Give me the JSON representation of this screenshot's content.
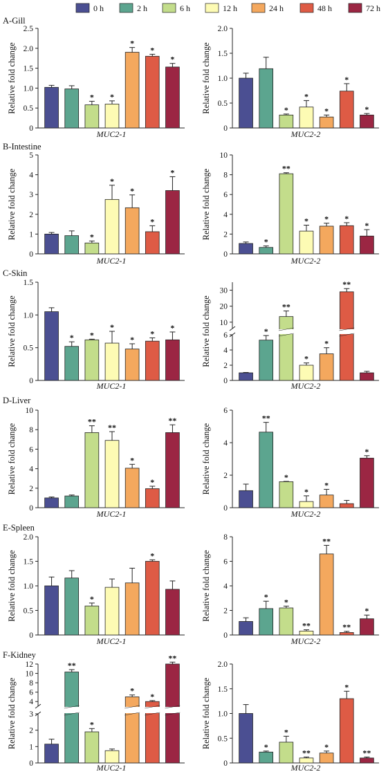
{
  "legend": {
    "entries": [
      {
        "label": "0 h",
        "color": "#4b4f92"
      },
      {
        "label": "2 h",
        "color": "#5ca58f"
      },
      {
        "label": "6 h",
        "color": "#c3dd8b"
      },
      {
        "label": "12 h",
        "color": "#fdfbb4"
      },
      {
        "label": "24 h",
        "color": "#f4a85e"
      },
      {
        "label": "48 h",
        "color": "#de5b45"
      },
      {
        "label": "72 h",
        "color": "#9b2643"
      }
    ]
  },
  "chart_data": [
    {
      "type": "bar",
      "panel": "A-Gill",
      "gene": "MUC2-1",
      "ylabel": "Relative fold change",
      "categories": [
        "0 h",
        "2 h",
        "6 h",
        "12 h",
        "24 h",
        "48 h",
        "72 h"
      ],
      "values": [
        1.02,
        0.98,
        0.58,
        0.6,
        1.9,
        1.8,
        1.53
      ],
      "errors": [
        0.05,
        0.08,
        0.09,
        0.08,
        0.12,
        0.05,
        0.09
      ],
      "significance": [
        "",
        "",
        "*",
        "*",
        "*",
        "*",
        "*"
      ],
      "ylim": [
        0,
        2.5
      ],
      "yticks": [
        0,
        0.5,
        1.0,
        1.5,
        2.0,
        2.5
      ],
      "yticklabels": [
        "0",
        "0.5",
        "1.0",
        "1.5",
        "2.0",
        "2.5"
      ]
    },
    {
      "type": "bar",
      "panel": "",
      "gene": "MUC2-2",
      "ylabel": "Relative fold change",
      "categories": [
        "0 h",
        "2 h",
        "6 h",
        "12 h",
        "24 h",
        "48 h",
        "72 h"
      ],
      "values": [
        1.0,
        1.19,
        0.26,
        0.42,
        0.22,
        0.74,
        0.26
      ],
      "errors": [
        0.1,
        0.23,
        0.02,
        0.13,
        0.04,
        0.15,
        0.03
      ],
      "significance": [
        "",
        "",
        "*",
        "*",
        "*",
        "*",
        "*"
      ],
      "ylim": [
        0,
        2.0
      ],
      "yticks": [
        0,
        0.5,
        1.0,
        1.5,
        2.0
      ],
      "yticklabels": [
        "0",
        "0.5",
        "1.0",
        "1.5",
        "2.0"
      ]
    },
    {
      "type": "bar",
      "panel": "B-Intestine",
      "gene": "MUC2-1",
      "ylabel": "Relative fold change",
      "categories": [
        "0 h",
        "2 h",
        "6 h",
        "12 h",
        "24 h",
        "48 h",
        "72 h"
      ],
      "values": [
        1.0,
        0.92,
        0.55,
        2.75,
        2.33,
        1.12,
        3.2
      ],
      "errors": [
        0.08,
        0.24,
        0.1,
        0.72,
        0.65,
        0.3,
        0.7
      ],
      "significance": [
        "",
        "",
        "*",
        "*",
        "*",
        "*",
        "*"
      ],
      "ylim": [
        0,
        5
      ],
      "yticks": [
        0,
        1,
        2,
        3,
        4,
        5
      ],
      "yticklabels": [
        "0",
        "1",
        "2",
        "3",
        "4",
        "5"
      ]
    },
    {
      "type": "bar",
      "panel": "",
      "gene": "MUC2-2",
      "ylabel": "Relative fold change",
      "categories": [
        "0 h",
        "2 h",
        "6 h",
        "12 h",
        "24 h",
        "48 h",
        "72 h"
      ],
      "values": [
        1.05,
        0.65,
        8.1,
        2.3,
        2.8,
        2.85,
        1.8
      ],
      "errors": [
        0.15,
        0.15,
        0.1,
        0.6,
        0.3,
        0.3,
        0.65
      ],
      "significance": [
        "",
        "*",
        "**",
        "*",
        "*",
        "*",
        "*"
      ],
      "ylim": [
        0,
        10
      ],
      "yticks": [
        0,
        2,
        4,
        6,
        8,
        10
      ],
      "yticklabels": [
        "0",
        "2",
        "4",
        "6",
        "8",
        "10"
      ]
    },
    {
      "type": "bar",
      "panel": "C-Skin",
      "gene": "MUC2-1",
      "ylabel": "Relative fold change",
      "categories": [
        "0 h",
        "2 h",
        "6 h",
        "12 h",
        "24 h",
        "48 h",
        "72 h"
      ],
      "values": [
        1.05,
        0.52,
        0.62,
        0.57,
        0.48,
        0.6,
        0.62
      ],
      "errors": [
        0.06,
        0.07,
        0.01,
        0.18,
        0.08,
        0.05,
        0.12
      ],
      "significance": [
        "",
        "*",
        "*",
        "*",
        "*",
        "*",
        "*"
      ],
      "ylim": [
        0,
        1.5
      ],
      "yticks": [
        0,
        0.5,
        1.0,
        1.5
      ],
      "yticklabels": [
        "0",
        "0.5",
        "1.0",
        "1.5"
      ]
    },
    {
      "type": "bar",
      "panel": "",
      "gene": "MUC2-2",
      "ylabel": "Relative fold change",
      "categories": [
        "0 h",
        "2 h",
        "6 h",
        "12 h",
        "24 h",
        "48 h",
        "72 h"
      ],
      "values": [
        1.0,
        5.3,
        13.5,
        2.0,
        3.5,
        29.0,
        1.0
      ],
      "errors": [
        0.05,
        0.6,
        3.5,
        0.3,
        0.8,
        2.0,
        0.2
      ],
      "significance": [
        "",
        "*",
        "**",
        "*",
        "*",
        "**",
        ""
      ],
      "axis_break": {
        "lower": [
          0,
          6
        ],
        "upper": [
          6,
          35
        ]
      },
      "yticks_lower": [
        0,
        2,
        4,
        6
      ],
      "yticks_upper": [
        10,
        20,
        30
      ],
      "yticklabels_lower": [
        "0",
        "2",
        "4",
        "6"
      ],
      "yticklabels_upper": [
        "10",
        "20",
        "30"
      ]
    },
    {
      "type": "bar",
      "panel": "D-Liver",
      "gene": "MUC2-1",
      "ylabel": "Relative fold change",
      "categories": [
        "0 h",
        "2 h",
        "6 h",
        "12 h",
        "24 h",
        "48 h",
        "72 h"
      ],
      "values": [
        1.0,
        1.2,
        7.7,
        6.9,
        4.05,
        1.95,
        7.7
      ],
      "errors": [
        0.1,
        0.1,
        0.7,
        0.9,
        0.4,
        0.25,
        0.8
      ],
      "significance": [
        "",
        "",
        "**",
        "**",
        "*",
        "*",
        "**"
      ],
      "ylim": [
        0,
        10
      ],
      "yticks": [
        0,
        2,
        4,
        6,
        8,
        10
      ],
      "yticklabels": [
        "0",
        "2",
        "4",
        "6",
        "8",
        "10"
      ]
    },
    {
      "type": "bar",
      "panel": "",
      "gene": "MUC2-2",
      "ylabel": "Relative fold change",
      "categories": [
        "0 h",
        "2 h",
        "6 h",
        "12 h",
        "24 h",
        "48 h",
        "72 h"
      ],
      "values": [
        1.05,
        4.65,
        1.6,
        0.38,
        0.78,
        0.25,
        3.05
      ],
      "errors": [
        0.4,
        0.6,
        0.02,
        0.35,
        0.35,
        0.2,
        0.15
      ],
      "significance": [
        "",
        "**",
        "*",
        "*",
        "*",
        "",
        "*"
      ],
      "ylim": [
        0,
        6
      ],
      "yticks": [
        0,
        2,
        4,
        6
      ],
      "yticklabels": [
        "0",
        "2",
        "4",
        "6"
      ]
    },
    {
      "type": "bar",
      "panel": "E-Spleen",
      "gene": "MUC2-1",
      "ylabel": "Relative fold change",
      "categories": [
        "0 h",
        "2 h",
        "6 h",
        "12 h",
        "24 h",
        "48 h",
        "72 h"
      ],
      "values": [
        1.0,
        1.16,
        0.59,
        0.97,
        1.06,
        1.5,
        0.93
      ],
      "errors": [
        0.18,
        0.15,
        0.06,
        0.17,
        0.3,
        0.03,
        0.17
      ],
      "significance": [
        "",
        "",
        "*",
        "",
        "",
        "*",
        ""
      ],
      "ylim": [
        0,
        2.0
      ],
      "yticks": [
        0,
        0.5,
        1.0,
        1.5,
        2.0
      ],
      "yticklabels": [
        "0",
        "0.5",
        "1.0",
        "1.5",
        "2.0"
      ]
    },
    {
      "type": "bar",
      "panel": "",
      "gene": "MUC2-2",
      "ylabel": "Relative fold change",
      "categories": [
        "0 h",
        "2 h",
        "6 h",
        "12 h",
        "24 h",
        "48 h",
        "72 h"
      ],
      "values": [
        1.1,
        2.15,
        2.2,
        0.32,
        6.6,
        0.2,
        1.32
      ],
      "errors": [
        0.3,
        0.6,
        0.15,
        0.1,
        0.7,
        0.1,
        0.3
      ],
      "significance": [
        "",
        "*",
        "*",
        "**",
        "**",
        "**",
        "*"
      ],
      "ylim": [
        0,
        8
      ],
      "yticks": [
        0,
        2,
        4,
        6,
        8
      ],
      "yticklabels": [
        "0",
        "2",
        "4",
        "6",
        "8"
      ]
    },
    {
      "type": "bar",
      "panel": "F-Kidney",
      "gene": "MUC2-1",
      "ylabel": "Relative fold change",
      "categories": [
        "0 h",
        "2 h",
        "6 h",
        "12 h",
        "24 h",
        "48 h",
        "72 h"
      ],
      "values": [
        1.15,
        10.3,
        1.9,
        0.75,
        5.0,
        4.0,
        12.0
      ],
      "errors": [
        0.3,
        0.5,
        0.2,
        0.1,
        0.4,
        0.2,
        0.4
      ],
      "significance": [
        "",
        "**",
        "*",
        "",
        "*",
        "*",
        "**"
      ],
      "axis_break": {
        "lower": [
          0,
          3
        ],
        "upper": [
          3,
          12
        ]
      },
      "yticks_lower": [
        0,
        1,
        2,
        3
      ],
      "yticks_upper": [
        4,
        6,
        8,
        10,
        12
      ],
      "yticklabels_lower": [
        "0",
        "1",
        "2",
        "3"
      ],
      "yticklabels_upper": [
        "4",
        "6",
        "8",
        "10",
        "12"
      ]
    },
    {
      "type": "bar",
      "panel": "",
      "gene": "MUC2-2",
      "ylabel": "Relative fold change",
      "categories": [
        "0 h",
        "2 h",
        "6 h",
        "12 h",
        "24 h",
        "48 h",
        "72 h"
      ],
      "values": [
        1.0,
        0.22,
        0.42,
        0.1,
        0.2,
        1.3,
        0.1
      ],
      "errors": [
        0.18,
        0.02,
        0.12,
        0.02,
        0.04,
        0.15,
        0.02
      ],
      "significance": [
        "",
        "*",
        "*",
        "**",
        "*",
        "*",
        "**"
      ],
      "ylim": [
        0,
        2.0
      ],
      "yticks": [
        0,
        0.5,
        1.0,
        1.5,
        2.0
      ],
      "yticklabels": [
        "0",
        "0.5",
        "1.0",
        "1.5",
        "2.0"
      ]
    }
  ]
}
